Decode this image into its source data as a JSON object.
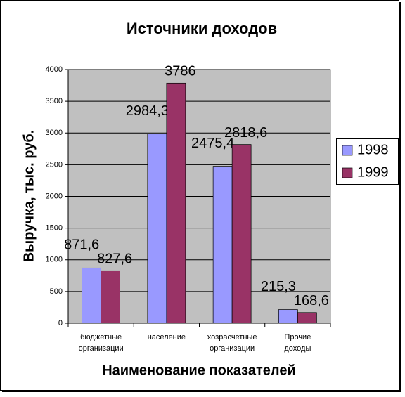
{
  "chart_data": {
    "type": "bar",
    "title": "Источники доходов",
    "y_label": "Выручка, тыс. руб.",
    "x_label": "Наименование показателей",
    "categories": [
      "бюджетные\nорганизации",
      "население",
      "хозрасчетные\nорганизации",
      "Прочие\nдоходы"
    ],
    "series": [
      {
        "name": "1998",
        "color": "#9999ff",
        "values": [
          871.6,
          2984.3,
          2475.4,
          215.3
        ],
        "value_labels": [
          "871,6",
          "2984,3",
          "2475,4",
          "215,3"
        ]
      },
      {
        "name": "1999",
        "color": "#993366",
        "values": [
          827.6,
          3786,
          2818.6,
          168.6
        ],
        "value_labels": [
          "827,6",
          "3786",
          "2818,6",
          "168,6"
        ]
      }
    ],
    "ylim": [
      0,
      4000
    ],
    "yticks": [
      0,
      500,
      1000,
      1500,
      2000,
      2500,
      3000,
      3500,
      4000
    ],
    "grid": true,
    "legend": "right"
  }
}
